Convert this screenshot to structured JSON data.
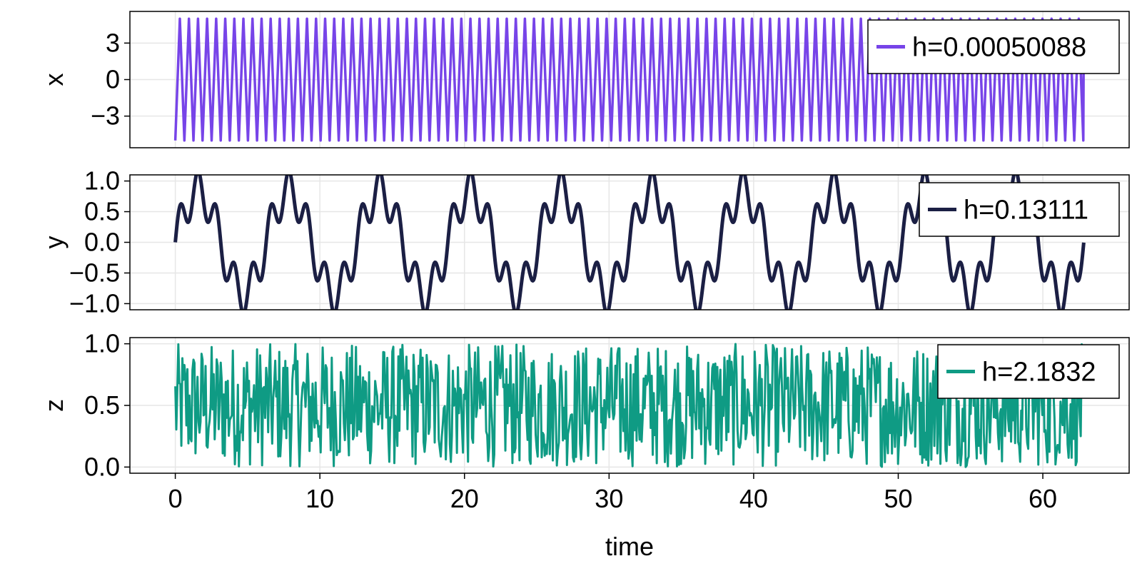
{
  "chart_data": {
    "type": "line",
    "xlabel": "time",
    "xlim": [
      -3.14,
      65.97
    ],
    "xticks": [
      "0",
      "10",
      "20",
      "30",
      "40",
      "50",
      "60"
    ],
    "xtick_values": [
      0,
      10,
      20,
      30,
      40,
      50,
      60
    ],
    "grid": true,
    "legend_position": "top-right",
    "panels": [
      {
        "ylabel": "x",
        "ylim": [
          -5.6,
          5.6
        ],
        "yticks": [
          "3",
          "0",
          "−3"
        ],
        "ytick_values": [
          3,
          0,
          -3
        ],
        "series": [
          {
            "name": "h=0.00050088",
            "color": "#7744e8",
            "signal": "square wave",
            "t_range": [
              0,
              62.83
            ],
            "period": 0.628,
            "min": -5,
            "max": 5
          }
        ]
      },
      {
        "ylabel": "y",
        "ylim": [
          -1.1,
          1.1
        ],
        "yticks": [
          "1.0",
          "0.5",
          "0.0",
          "−0.5",
          "−1.0"
        ],
        "ytick_values": [
          1.0,
          0.5,
          0.0,
          -0.5,
          -1.0
        ],
        "series": [
          {
            "name": "h=0.13111",
            "color": "#1b1f44",
            "signal": "sin(t) + 0.4·sin(5t)",
            "t_range": [
              0,
              62.83
            ],
            "min": -1,
            "max": 1
          }
        ]
      },
      {
        "ylabel": "z",
        "ylim": [
          -0.05,
          1.05
        ],
        "yticks": [
          "1.0",
          "0.5",
          "0.0"
        ],
        "ytick_values": [
          1.0,
          0.5,
          0.0
        ],
        "series": [
          {
            "name": "h=2.1832",
            "color": "#0f9b84",
            "signal": "uniform random noise",
            "t_range": [
              0,
              62.83
            ],
            "min": 0,
            "max": 1
          }
        ]
      }
    ]
  }
}
